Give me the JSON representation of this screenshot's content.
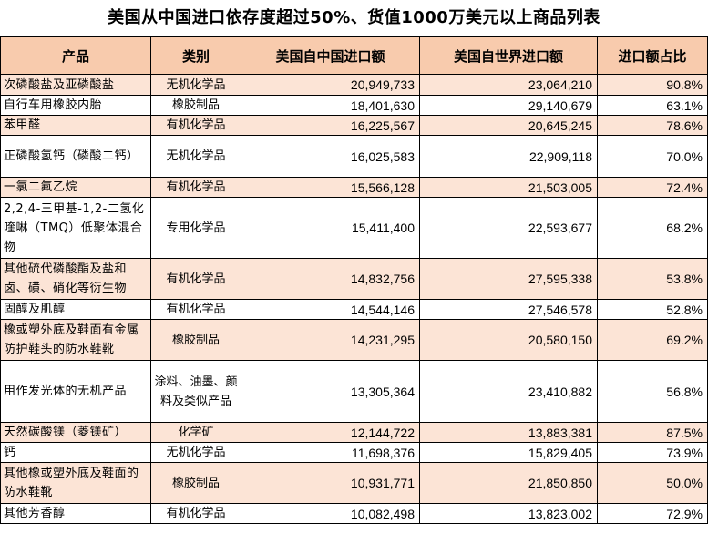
{
  "title": "美国从中国进口依存度超过50%、货值1000万美元以上商品列表",
  "columns": [
    "产品",
    "类别",
    "美国自中国进口额",
    "美国自世界进口额",
    "进口额占比"
  ],
  "rows": [
    {
      "product": "次磷酸盐及亚磷酸盐",
      "category": "无机化学品",
      "china": "20,949,733",
      "world": "23,064,210",
      "share": "90.8%"
    },
    {
      "product": "自行车用橡胶内胎",
      "category": "橡胶制品",
      "china": "18,401,630",
      "world": "29,140,679",
      "share": "63.1%"
    },
    {
      "product": "苯甲醛",
      "category": "有机化学品",
      "china": "16,225,567",
      "world": "20,645,245",
      "share": "78.6%"
    },
    {
      "product": "正磷酸氢钙（磷酸二钙）",
      "category": "无机化学品",
      "china": "16,025,583",
      "world": "22,909,118",
      "share": "70.0%"
    },
    {
      "product": "一氯二氟乙烷",
      "category": "有机化学品",
      "china": "15,566,128",
      "world": "21,503,005",
      "share": "72.4%"
    },
    {
      "product": "2,2,4-三甲基-1,2-二氢化喹啉（TMQ）低聚体混合物",
      "category": "专用化学品",
      "china": "15,411,400",
      "world": "22,593,677",
      "share": "68.2%"
    },
    {
      "product": "其他硫代磷酸酯及盐和卤、磺、硝化等衍生物",
      "category": "有机化学品",
      "china": "14,832,756",
      "world": "27,595,338",
      "share": "53.8%"
    },
    {
      "product": "固醇及肌醇",
      "category": "有机化学品",
      "china": "14,544,146",
      "world": "27,546,578",
      "share": "52.8%"
    },
    {
      "product": "橡或塑外底及鞋面有金属防护鞋头的防水鞋靴",
      "category": "橡胶制品",
      "china": "14,231,295",
      "world": "20,580,150",
      "share": "69.2%"
    },
    {
      "product": "用作发光体的无机产品",
      "category": "涂料、油墨、颜料及类似产品",
      "china": "13,305,364",
      "world": "23,410,882",
      "share": "56.8%"
    },
    {
      "product": "天然碳酸镁（菱镁矿）",
      "category": "化学矿",
      "china": "12,144,722",
      "world": "13,883,381",
      "share": "87.5%"
    },
    {
      "product": "钙",
      "category": "无机化学品",
      "china": "11,698,376",
      "world": "15,829,405",
      "share": "73.9%"
    },
    {
      "product": "其他橡或塑外底及鞋面的防水鞋靴",
      "category": "橡胶制品",
      "china": "10,931,771",
      "world": "21,850,850",
      "share": "50.0%"
    },
    {
      "product": "其他芳香醇",
      "category": "有机化学品",
      "china": "10,082,498",
      "world": "13,823,002",
      "share": "72.9%"
    }
  ]
}
